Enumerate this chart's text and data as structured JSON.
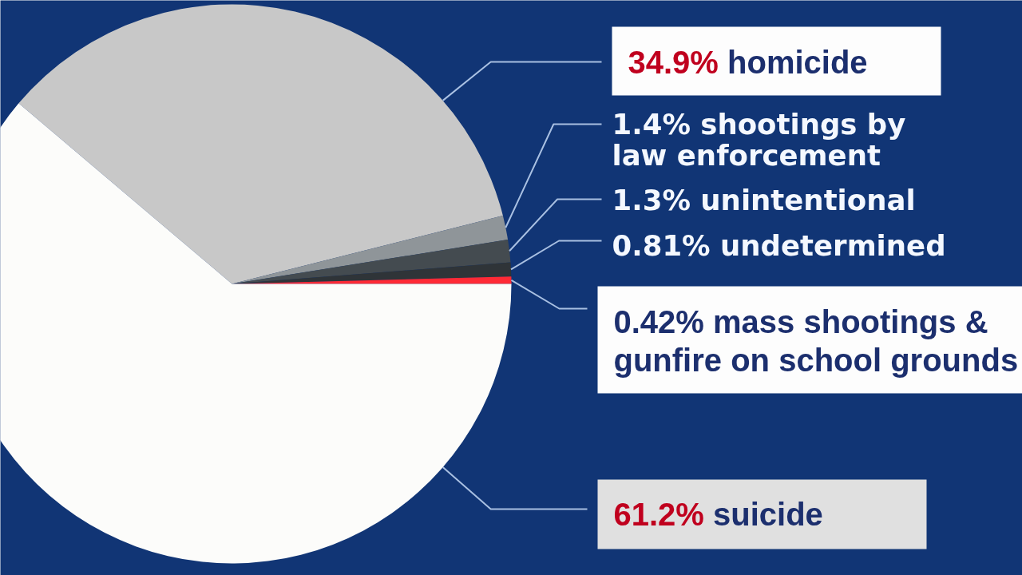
{
  "chart_data": {
    "type": "pie",
    "categories": [
      "homicide",
      "shootings by law enforcement",
      "unintentional",
      "undetermined",
      "mass shootings & gunfire on school grounds",
      "suicide"
    ],
    "values": [
      34.9,
      1.4,
      1.3,
      0.81,
      0.42,
      61.2
    ],
    "colors": [
      "#c8c8c8",
      "#8f9599",
      "#444b50",
      "#2f3438",
      "#ff2a35",
      "#fcfcfa"
    ],
    "value_labels": [
      "34.9%",
      "1.4%",
      "1.3%",
      "0.81%",
      "0.42%",
      "61.2%"
    ]
  }
}
